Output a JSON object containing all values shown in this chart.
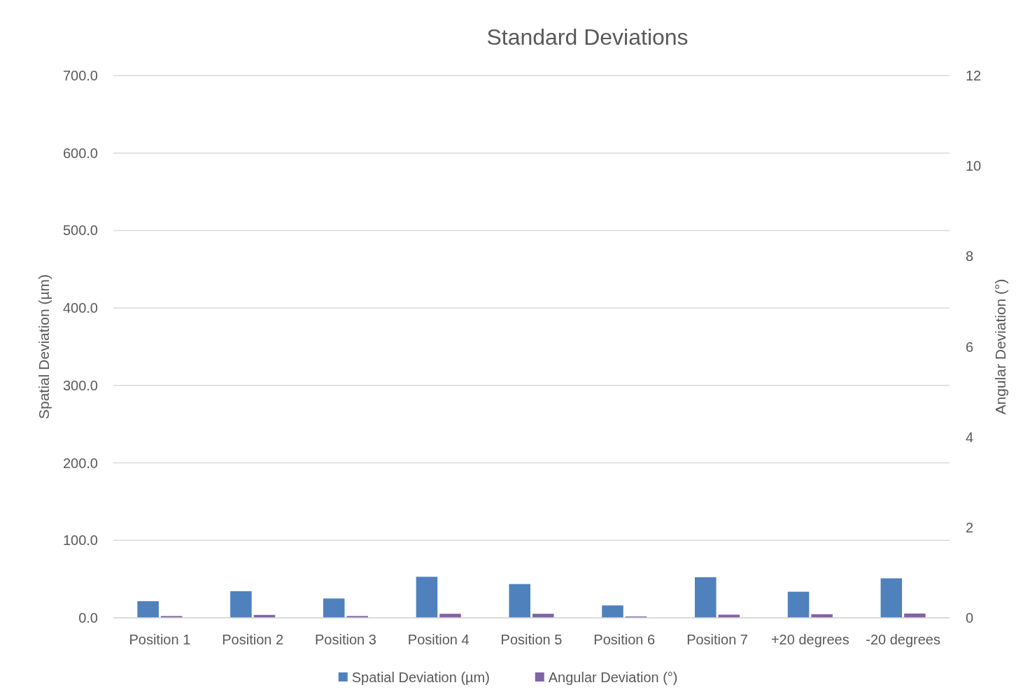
{
  "chart_data": {
    "type": "bar",
    "title": "Standard Deviations",
    "ylabel": "Spatial Deviation (µm)",
    "y2label": "Angular Deviation (°)",
    "categories": [
      "Position 1",
      "Position 2",
      "Position 3",
      "Position 4",
      "Position 5",
      "Position 6",
      "Position 7",
      "+20 degrees",
      "-20 degrees"
    ],
    "series": [
      {
        "name": "Spatial Deviation (µm)",
        "color": "#4f81bd",
        "values": [
          21.5,
          34.4,
          25,
          53,
          43.6,
          16,
          52.4,
          33.7,
          51
        ]
      },
      {
        "name": "Angular Deviation (°)",
        "color": "#8064a2",
        "axis": "y2",
        "values": [
          0.04,
          0.065,
          0.04,
          0.09,
          0.09,
          0.03,
          0.07,
          0.08,
          0.095
        ]
      }
    ],
    "ylim": [
      0,
      700
    ],
    "yticks": [
      {
        "value": 0,
        "label": "0.0"
      },
      {
        "value": 100,
        "label": "100.0"
      },
      {
        "value": 200,
        "label": "200.0"
      },
      {
        "value": 300,
        "label": "300.0"
      },
      {
        "value": 400,
        "label": "400.0"
      },
      {
        "value": 500,
        "label": "500.0"
      },
      {
        "value": 600,
        "label": "600.0"
      },
      {
        "value": 700,
        "label": "700.0"
      }
    ],
    "y2lim": [
      0,
      12
    ],
    "y2ticks": [
      0,
      2,
      4,
      6,
      8,
      10,
      12
    ],
    "grid": "y",
    "legend": "bottom"
  }
}
